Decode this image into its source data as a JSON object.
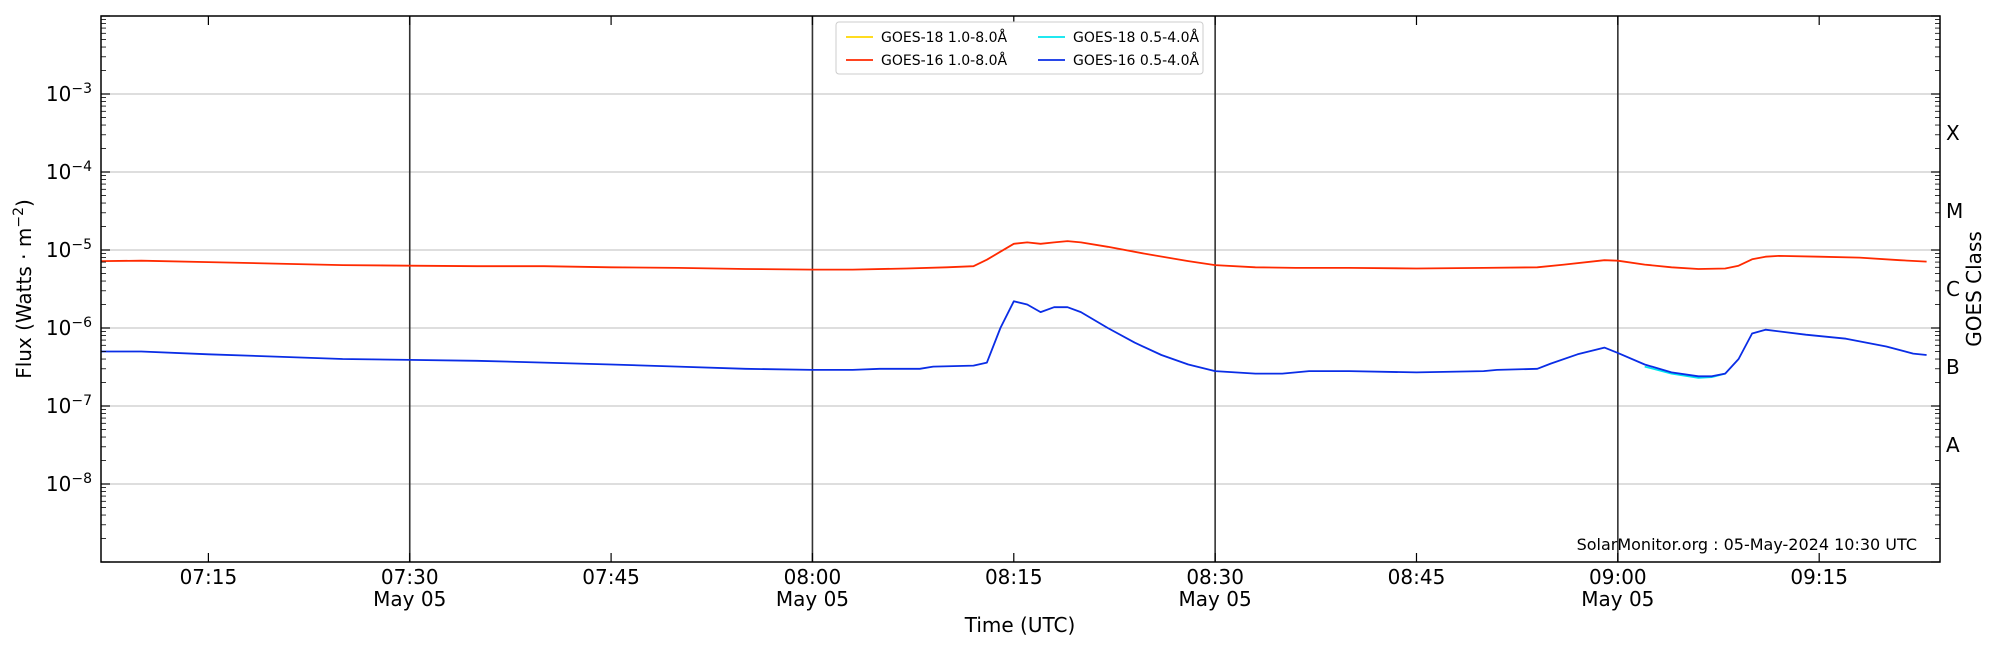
{
  "chart_data": {
    "type": "line",
    "xlabel": "Time (UTC)",
    "ylabel_main": "Flux (Watts · m",
    "ylabel_sup": "−2",
    "ylabel_close": ")",
    "ylabel_right": "GOES Class",
    "y_scale": "log",
    "ylim": [
      1e-09,
      0.01
    ],
    "xlim": [
      "07:07",
      "09:24"
    ],
    "credit": "SolarMonitor.org : 05-May-2024 10:30 UTC",
    "legend_position": "top-center",
    "grid": "horizontal lines at each y decade; vertical lines at 07:30, 08:00, 08:30, 09:00",
    "y_ticks": [
      {
        "value": 1e-08,
        "base": "10",
        "exp": "−8"
      },
      {
        "value": 1e-07,
        "base": "10",
        "exp": "−7"
      },
      {
        "value": 1e-06,
        "base": "10",
        "exp": "−6"
      },
      {
        "value": 1e-05,
        "base": "10",
        "exp": "−5"
      },
      {
        "value": 0.0001,
        "base": "10",
        "exp": "−4"
      },
      {
        "value": 0.001,
        "base": "10",
        "exp": "−3"
      }
    ],
    "x_ticks": [
      {
        "time": "07:15",
        "label": "07:15",
        "date": ""
      },
      {
        "time": "07:30",
        "label": "07:30",
        "date": "May 05"
      },
      {
        "time": "07:45",
        "label": "07:45",
        "date": ""
      },
      {
        "time": "08:00",
        "label": "08:00",
        "date": "May 05"
      },
      {
        "time": "08:15",
        "label": "08:15",
        "date": ""
      },
      {
        "time": "08:30",
        "label": "08:30",
        "date": "May 05"
      },
      {
        "time": "08:45",
        "label": "08:45",
        "date": ""
      },
      {
        "time": "09:00",
        "label": "09:00",
        "date": "May 05"
      },
      {
        "time": "09:15",
        "label": "09:15",
        "date": ""
      }
    ],
    "vertical_lines": [
      "07:30",
      "08:00",
      "08:30",
      "09:00"
    ],
    "goes_classes": [
      {
        "label": "A",
        "value": 3.16e-08
      },
      {
        "label": "B",
        "value": 3.16e-07
      },
      {
        "label": "C",
        "value": 3.16e-06
      },
      {
        "label": "M",
        "value": 3.16e-05
      },
      {
        "label": "X",
        "value": 0.000316
      }
    ],
    "series": [
      {
        "name": "GOES-18 1.0-8.0Å",
        "color": "#ffd700",
        "points": []
      },
      {
        "name": "GOES-18 0.5-4.0Å",
        "color": "#00e5ee",
        "points": [
          [
            "09:02",
            3.2e-07
          ],
          [
            "09:04",
            2.6e-07
          ],
          [
            "09:06",
            2.3e-07
          ],
          [
            "09:07",
            2.35e-07
          ],
          [
            "09:08",
            2.6e-07
          ]
        ]
      },
      {
        "name": "GOES-16 1.0-8.0Å",
        "color": "#ff2a00",
        "points": [
          [
            "07:07",
            7.2e-06
          ],
          [
            "07:10",
            7.3e-06
          ],
          [
            "07:15",
            7e-06
          ],
          [
            "07:20",
            6.7e-06
          ],
          [
            "07:25",
            6.4e-06
          ],
          [
            "07:30",
            6.3e-06
          ],
          [
            "07:35",
            6.2e-06
          ],
          [
            "07:40",
            6.2e-06
          ],
          [
            "07:45",
            6e-06
          ],
          [
            "07:50",
            5.9e-06
          ],
          [
            "07:55",
            5.7e-06
          ],
          [
            "08:00",
            5.6e-06
          ],
          [
            "08:03",
            5.6e-06
          ],
          [
            "08:07",
            5.8e-06
          ],
          [
            "08:10",
            6e-06
          ],
          [
            "08:12",
            6.2e-06
          ],
          [
            "08:13",
            7.5e-06
          ],
          [
            "08:14",
            9.5e-06
          ],
          [
            "08:15",
            1.2e-05
          ],
          [
            "08:16",
            1.25e-05
          ],
          [
            "08:17",
            1.2e-05
          ],
          [
            "08:18",
            1.25e-05
          ],
          [
            "08:19",
            1.3e-05
          ],
          [
            "08:20",
            1.25e-05
          ],
          [
            "08:22",
            1.1e-05
          ],
          [
            "08:25",
            8.8e-06
          ],
          [
            "08:28",
            7.2e-06
          ],
          [
            "08:30",
            6.4e-06
          ],
          [
            "08:33",
            6e-06
          ],
          [
            "08:36",
            5.9e-06
          ],
          [
            "08:40",
            5.9e-06
          ],
          [
            "08:45",
            5.8e-06
          ],
          [
            "08:50",
            5.9e-06
          ],
          [
            "08:54",
            6e-06
          ],
          [
            "08:56",
            6.5e-06
          ],
          [
            "08:59",
            7.4e-06
          ],
          [
            "09:00",
            7.3e-06
          ],
          [
            "09:02",
            6.5e-06
          ],
          [
            "09:04",
            6e-06
          ],
          [
            "09:06",
            5.7e-06
          ],
          [
            "09:08",
            5.8e-06
          ],
          [
            "09:09",
            6.3e-06
          ],
          [
            "09:10",
            7.6e-06
          ],
          [
            "09:11",
            8.2e-06
          ],
          [
            "09:12",
            8.4e-06
          ],
          [
            "09:15",
            8.2e-06
          ],
          [
            "09:18",
            8e-06
          ],
          [
            "09:21",
            7.4e-06
          ],
          [
            "09:23",
            7.1e-06
          ]
        ]
      },
      {
        "name": "GOES-16 0.5-4.0Å",
        "color": "#0a2de6",
        "points": [
          [
            "07:07",
            5e-07
          ],
          [
            "07:10",
            5e-07
          ],
          [
            "07:15",
            4.6e-07
          ],
          [
            "07:20",
            4.3e-07
          ],
          [
            "07:25",
            4e-07
          ],
          [
            "07:30",
            3.9e-07
          ],
          [
            "07:35",
            3.8e-07
          ],
          [
            "07:40",
            3.6e-07
          ],
          [
            "07:45",
            3.4e-07
          ],
          [
            "07:50",
            3.2e-07
          ],
          [
            "07:55",
            3e-07
          ],
          [
            "08:00",
            2.9e-07
          ],
          [
            "08:03",
            2.9e-07
          ],
          [
            "08:05",
            3e-07
          ],
          [
            "08:08",
            3e-07
          ],
          [
            "08:09",
            3.2e-07
          ],
          [
            "08:12",
            3.3e-07
          ],
          [
            "08:13",
            3.6e-07
          ],
          [
            "08:14",
            1e-06
          ],
          [
            "08:15",
            2.2e-06
          ],
          [
            "08:16",
            2e-06
          ],
          [
            "08:17",
            1.6e-06
          ],
          [
            "08:18",
            1.85e-06
          ],
          [
            "08:19",
            1.85e-06
          ],
          [
            "08:20",
            1.6e-06
          ],
          [
            "08:22",
            1e-06
          ],
          [
            "08:24",
            6.5e-07
          ],
          [
            "08:26",
            4.5e-07
          ],
          [
            "08:28",
            3.4e-07
          ],
          [
            "08:30",
            2.8e-07
          ],
          [
            "08:33",
            2.6e-07
          ],
          [
            "08:35",
            2.6e-07
          ],
          [
            "08:37",
            2.8e-07
          ],
          [
            "08:40",
            2.8e-07
          ],
          [
            "08:45",
            2.7e-07
          ],
          [
            "08:50",
            2.8e-07
          ],
          [
            "08:51",
            2.9e-07
          ],
          [
            "08:54",
            3e-07
          ],
          [
            "08:55",
            3.5e-07
          ],
          [
            "08:57",
            4.6e-07
          ],
          [
            "08:59",
            5.6e-07
          ],
          [
            "09:00",
            4.8e-07
          ],
          [
            "09:02",
            3.4e-07
          ],
          [
            "09:04",
            2.7e-07
          ],
          [
            "09:06",
            2.4e-07
          ],
          [
            "09:07",
            2.4e-07
          ],
          [
            "09:08",
            2.6e-07
          ],
          [
            "09:09",
            4e-07
          ],
          [
            "09:10",
            8.5e-07
          ],
          [
            "09:11",
            9.5e-07
          ],
          [
            "09:14",
            8.2e-07
          ],
          [
            "09:17",
            7.3e-07
          ],
          [
            "09:20",
            5.8e-07
          ],
          [
            "09:22",
            4.7e-07
          ],
          [
            "09:23",
            4.5e-07
          ]
        ]
      }
    ]
  }
}
